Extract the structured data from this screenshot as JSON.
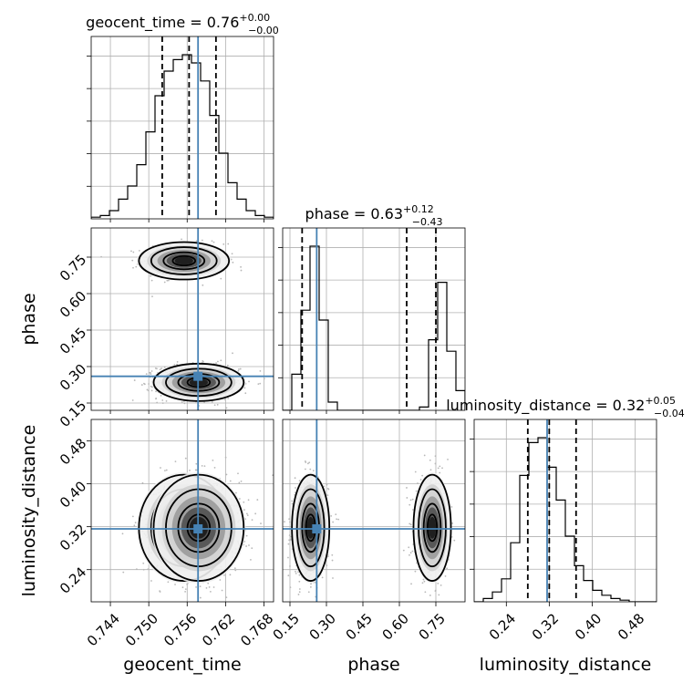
{
  "chart_data": {
    "type": "corner",
    "parameters": [
      {
        "name": "geocent_time",
        "truth": 0.7577,
        "median": 0.7563,
        "lower": 0.7521,
        "upper": 0.7605,
        "range": [
          0.741,
          0.7695
        ],
        "ticks": [
          0.744,
          0.75,
          0.756,
          0.762,
          0.768
        ],
        "tick_labels": [
          "0.744",
          "0.750",
          "0.756",
          "0.762",
          "0.768"
        ],
        "title": "geocent_time = 0.76",
        "title_plus": "+0.00",
        "title_minus": "−0.00"
      },
      {
        "name": "phase",
        "truth": 0.26,
        "median": 0.63,
        "lower": 0.2,
        "upper": 0.75,
        "range": [
          0.12,
          0.87
        ],
        "ticks": [
          0.15,
          0.3,
          0.45,
          0.6,
          0.75
        ],
        "tick_labels": [
          "0.15",
          "0.30",
          "0.45",
          "0.60",
          "0.75"
        ],
        "title": "phase = 0.63",
        "title_plus": "+0.12",
        "title_minus": "−0.43"
      },
      {
        "name": "luminosity_distance",
        "truth": 0.316,
        "median": 0.32,
        "lower": 0.28,
        "upper": 0.37,
        "range": [
          0.18,
          0.52
        ],
        "ticks": [
          0.24,
          0.32,
          0.4,
          0.48
        ],
        "tick_labels": [
          "0.24",
          "0.32",
          "0.40",
          "0.48"
        ],
        "title": "luminosity_distance = 0.32",
        "title_plus": "+0.05",
        "title_minus": "−0.04"
      }
    ],
    "histograms": {
      "geocent_time": [
        0.01,
        0.02,
        0.05,
        0.12,
        0.2,
        0.33,
        0.53,
        0.75,
        0.9,
        0.97,
        1.0,
        0.95,
        0.84,
        0.63,
        0.4,
        0.22,
        0.12,
        0.05,
        0.02,
        0.01
      ],
      "phase": [
        0.0,
        0.22,
        0.61,
        1.0,
        0.55,
        0.05,
        0.0,
        0.0,
        0.0,
        0.0,
        0.0,
        0.0,
        0.0,
        0.0,
        0.0,
        0.02,
        0.43,
        0.78,
        0.36,
        0.12
      ],
      "luminosity_distance": [
        0.0,
        0.02,
        0.06,
        0.14,
        0.36,
        0.77,
        0.97,
        1.0,
        0.82,
        0.62,
        0.4,
        0.22,
        0.13,
        0.07,
        0.04,
        0.02,
        0.01,
        0.0,
        0.0,
        0.0
      ]
    },
    "modes": [
      {
        "geocent_time": 0.7555,
        "phase": 0.735,
        "luminosity_distance": 0.318,
        "weight": 0.36
      },
      {
        "geocent_time": 0.7578,
        "phase": 0.235,
        "luminosity_distance": 0.318,
        "weight": 0.64
      }
    ],
    "grid": true,
    "truth_color": "#4682b4"
  }
}
